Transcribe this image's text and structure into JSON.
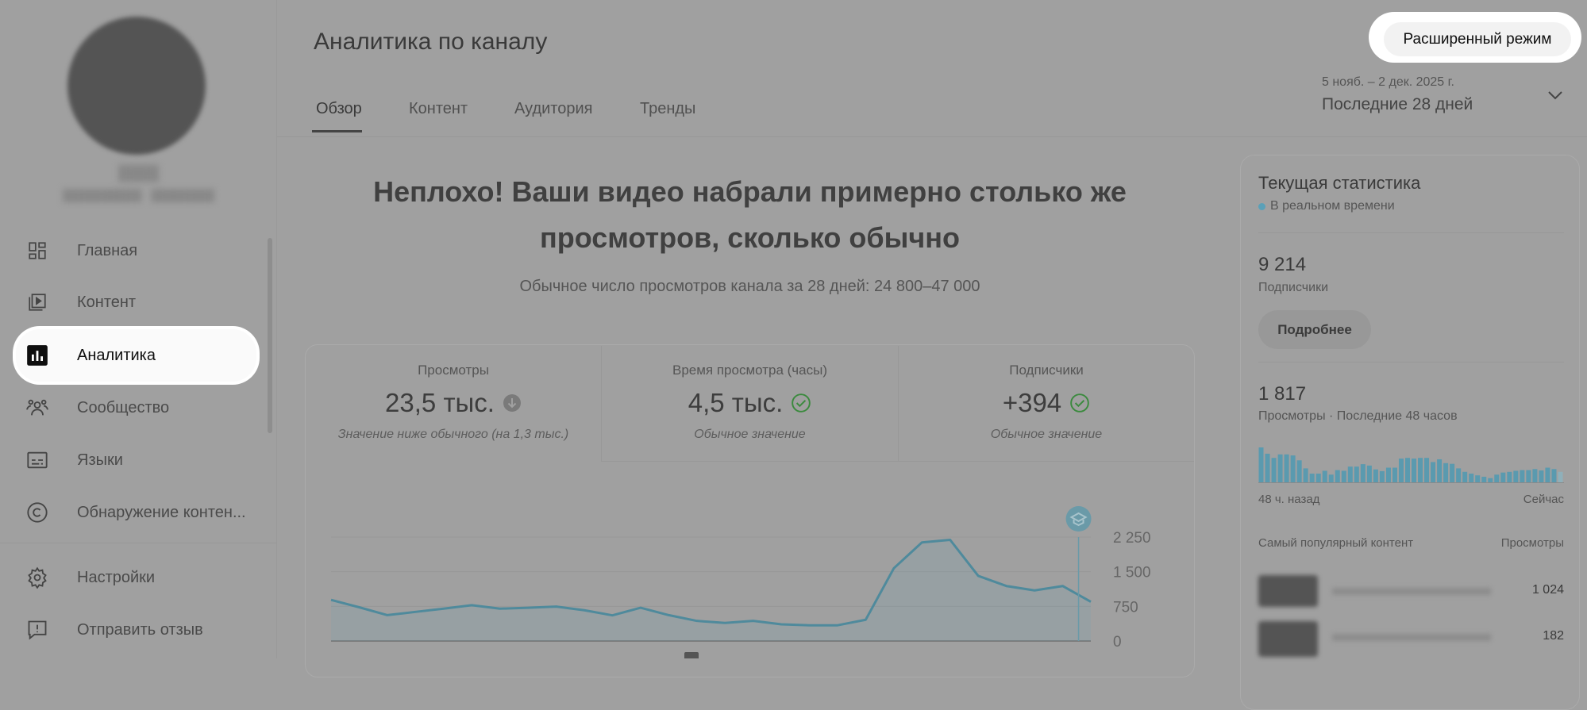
{
  "sidebar": {
    "items": [
      {
        "label": "Главная",
        "icon": "dashboard-icon"
      },
      {
        "label": "Контент",
        "icon": "video-library-icon"
      },
      {
        "label": "Аналитика",
        "icon": "analytics-icon",
        "active": true
      },
      {
        "label": "Сообщество",
        "icon": "community-icon"
      },
      {
        "label": "Языки",
        "icon": "subtitles-icon"
      },
      {
        "label": "Обнаружение контен...",
        "icon": "copyright-icon"
      }
    ],
    "bottom": [
      {
        "label": "Настройки",
        "icon": "gear-icon"
      },
      {
        "label": "Отправить отзыв",
        "icon": "feedback-icon"
      }
    ]
  },
  "header": {
    "title": "Аналитика по каналу",
    "tabs": [
      "Обзор",
      "Контент",
      "Аудитория",
      "Тренды"
    ],
    "active_tab": "Обзор",
    "advanced_button": "Расширенный режим",
    "date_range": "5 нояб. – 2 дек. 2025 г.",
    "period": "Последние 28 дней"
  },
  "summary": {
    "headline_line1": "Неплохо! Ваши видео набрали примерно столько же",
    "headline_line2": "просмотров, сколько обычно",
    "subtext": "Обычное число просмотров канала за 28 дней: 24 800–47 000"
  },
  "metrics": [
    {
      "label": "Просмотры",
      "value": "23,5 тыс.",
      "status": "below",
      "note": "Значение ниже обычного (на 1,3 тыс.)"
    },
    {
      "label": "Время просмотра (часы)",
      "value": "4,5 тыс.",
      "status": "normal",
      "note": "Обычное значение"
    },
    {
      "label": "Подписчики",
      "value": "+394",
      "status": "normal",
      "note": "Обычное значение"
    }
  ],
  "colors": {
    "line": "#4f8a9c",
    "accent_green": "#3b8a3e",
    "realtime_dot": "#5aa0b8"
  },
  "chart_data": {
    "type": "area",
    "ylim": [
      0,
      2250
    ],
    "yticks": [
      "0",
      "750",
      "1 500",
      "2 250"
    ],
    "ytick_values": [
      0,
      750,
      1500,
      2250
    ],
    "grid": true,
    "values": [
      890,
      730,
      560,
      630,
      700,
      775,
      700,
      720,
      745,
      665,
      555,
      720,
      560,
      435,
      390,
      435,
      360,
      340,
      340,
      460,
      1575,
      2135,
      2190,
      1410,
      1190,
      1095,
      1190,
      850
    ],
    "marker_index": 26,
    "marker_icon": "graduation-cap-icon"
  },
  "realtime": {
    "title": "Текущая статистика",
    "subtitle": "В реальном времени",
    "subscribers_value": "9 214",
    "subscribers_label": "Подписчики",
    "details_button": "Подробнее",
    "views_value": "1 817",
    "views_label": "Просмотры · Последние 48 часов",
    "bars": [
      100,
      82,
      70,
      80,
      80,
      77,
      63,
      40,
      25,
      25,
      33,
      22,
      35,
      33,
      45,
      45,
      52,
      48,
      37,
      32,
      42,
      42,
      68,
      70,
      68,
      70,
      70,
      58,
      66,
      55,
      53,
      40,
      30,
      25,
      20,
      16,
      12,
      22,
      28,
      30,
      33,
      35,
      35,
      38,
      34,
      42,
      38,
      30
    ],
    "axis_start": "48 ч. назад",
    "axis_end": "Сейчас",
    "top_header": "Самый популярный контент",
    "top_views_header": "Просмотры",
    "top_rows": [
      {
        "views": "1 024"
      },
      {
        "views": "182"
      }
    ]
  }
}
